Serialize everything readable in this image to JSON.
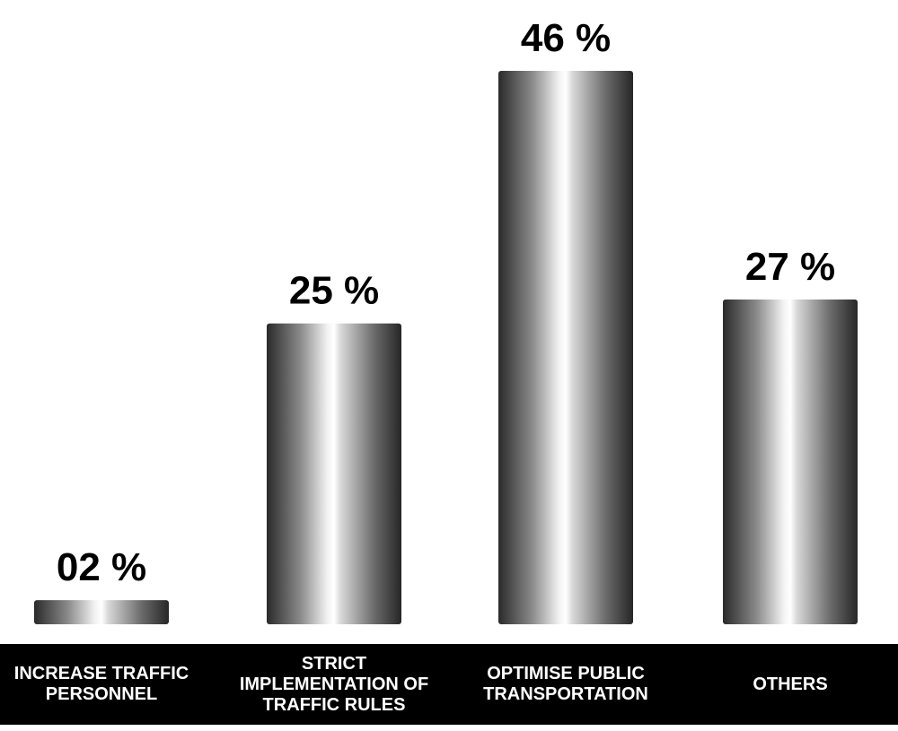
{
  "chart_data": {
    "type": "bar",
    "categories": [
      "INCREASE TRAFFIC PERSONNEL",
      "STRICT IMPLEMENTATION OF TRAFFIC RULES",
      "OPTIMISE PUBLIC TRANSPORTATION",
      "OTHERS"
    ],
    "values": [
      2,
      25,
      46,
      27
    ],
    "value_labels": [
      "02 %",
      "25 %",
      "46 %",
      "27 %"
    ]
  }
}
